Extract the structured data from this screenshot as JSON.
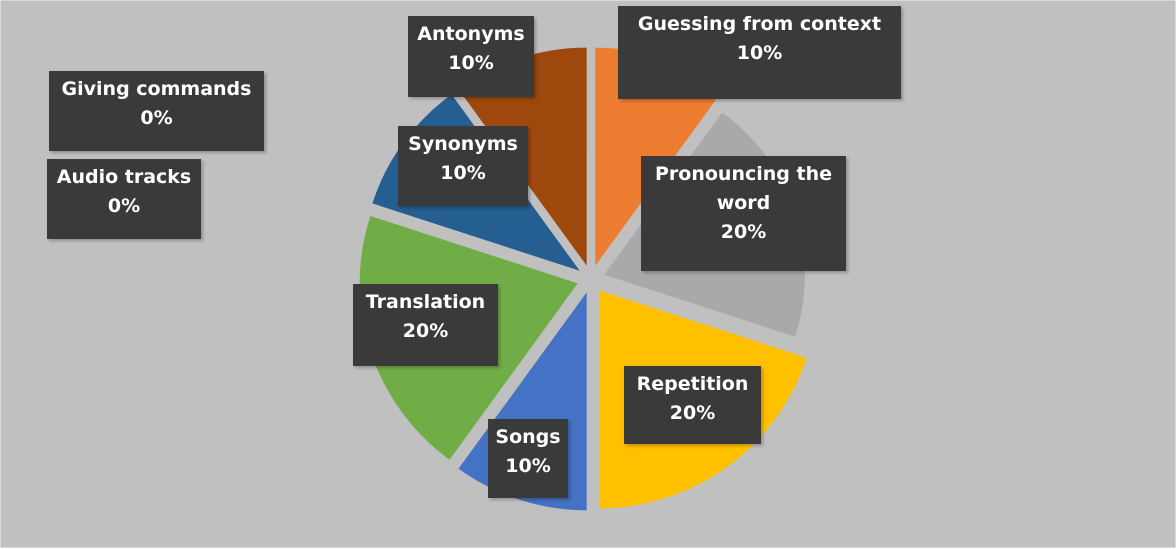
{
  "chart_data": {
    "type": "pie",
    "categories": [
      "Guessing from context",
      "Pronouncing the word",
      "Repetition",
      "Songs",
      "Translation",
      "Synonyms",
      "Antonyms",
      "Giving commands",
      "Audio tracks"
    ],
    "values": [
      10,
      20,
      20,
      10,
      20,
      10,
      10,
      0,
      0
    ],
    "value_labels": [
      "10%",
      "20%",
      "20%",
      "10%",
      "20%",
      "10%",
      "10%",
      "0%",
      "0%"
    ],
    "colors": [
      "#ed7d31",
      "#a5a5a5",
      "#ffc000",
      "#4472c4",
      "#70ad47",
      "#255e91",
      "#9e480e",
      "#264478",
      "#636363"
    ]
  }
}
